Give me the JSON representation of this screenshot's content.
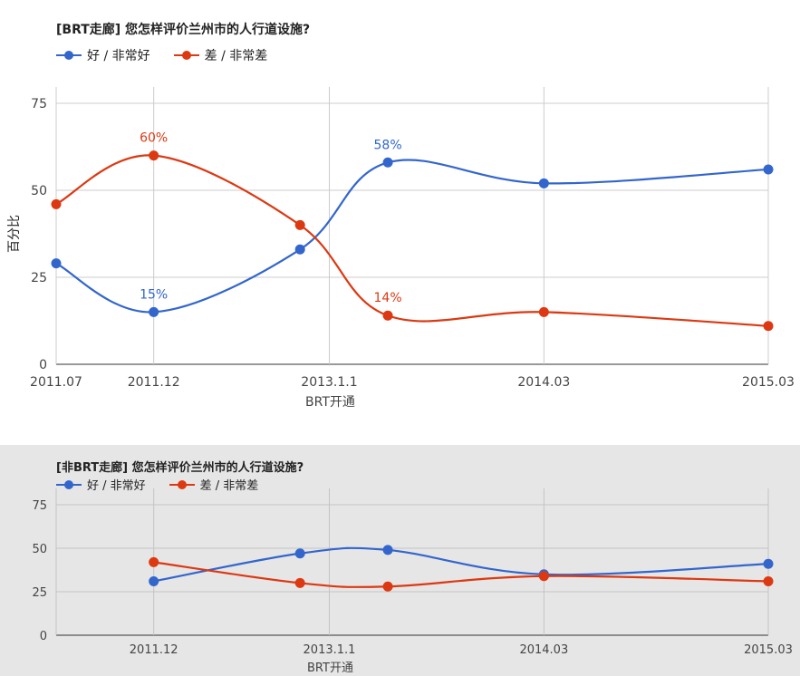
{
  "chart_data": [
    {
      "type": "line",
      "title": "[BRT走廊] 您怎样评价兰州市的人行道设施?",
      "ylabel": "百分比",
      "xlabel": "BRT开通",
      "ylim": [
        0,
        75
      ],
      "yticks": [
        0,
        25,
        50,
        75
      ],
      "x_tick_labels": [
        "2011.07",
        "2011.12",
        "2013.1.1",
        "2014.03",
        "2015.03"
      ],
      "x_tick_positions": [
        0,
        1,
        2.8,
        5,
        7.3
      ],
      "grid": true,
      "legend_position": "top-left",
      "x": [
        0,
        1,
        2.5,
        3.4,
        5,
        7.3
      ],
      "series": [
        {
          "name": "好 / 非常好",
          "color": "#3366cc",
          "values": [
            29,
            15,
            33,
            58,
            52,
            56
          ],
          "labels": [
            "",
            "15%",
            "",
            "58%",
            "",
            ""
          ]
        },
        {
          "name": "差 / 非常差",
          "color": "#dc3912",
          "values": [
            46,
            60,
            40,
            14,
            15,
            11
          ],
          "labels": [
            "",
            "60%",
            "",
            "14%",
            "",
            ""
          ]
        }
      ]
    },
    {
      "type": "line",
      "title": "[非BRT走廊] 您怎样评价兰州市的人行道设施?",
      "xlabel": "BRT开通",
      "ylim": [
        0,
        75
      ],
      "yticks": [
        0,
        25,
        50,
        75
      ],
      "x_tick_labels": [
        "2011.12",
        "2013.1.1",
        "2014.03",
        "2015.03"
      ],
      "x_tick_positions": [
        1,
        2.8,
        5,
        7.3
      ],
      "grid": true,
      "legend_position": "top-left",
      "x": [
        1,
        2.5,
        3.4,
        5,
        7.3
      ],
      "series": [
        {
          "name": "好 / 非常好",
          "color": "#3366cc",
          "values": [
            31,
            47,
            49,
            35,
            41
          ]
        },
        {
          "name": "差 / 非常差",
          "color": "#dc3912",
          "values": [
            42,
            30,
            28,
            34,
            31
          ]
        }
      ]
    }
  ]
}
